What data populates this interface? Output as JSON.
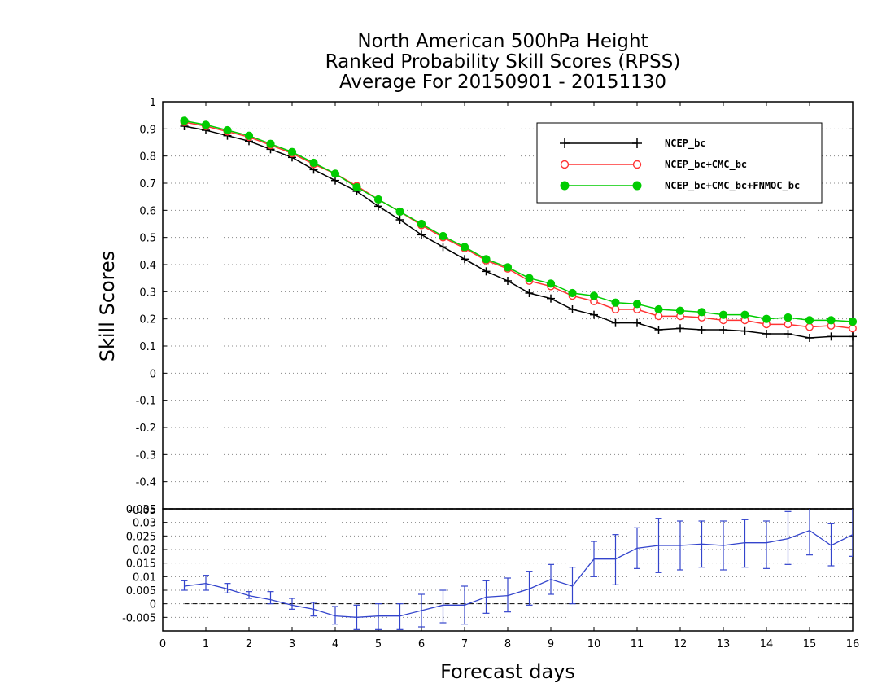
{
  "chart_data": [
    {
      "type": "line",
      "title_lines": [
        "North American 500hPa Height",
        "Ranked Probability Skill Scores (RPSS)",
        " Average For 20150901 - 20151130"
      ],
      "ylabel": "Skill Scores",
      "ylim": [
        -0.5,
        1.0
      ],
      "xlim": [
        0,
        16
      ],
      "yticks": [
        "1",
        "0.9",
        "0.8",
        "0.7",
        "0.6",
        "0.5",
        "0.4",
        "0.3",
        "0.2",
        "0.1",
        "0",
        "-0.1",
        "-0.2",
        "-0.3",
        "-0.4"
      ],
      "ytick_values": [
        1,
        0.9,
        0.8,
        0.7,
        0.6,
        0.5,
        0.4,
        0.3,
        0.2,
        0.1,
        0,
        -0.1,
        -0.2,
        -0.3,
        -0.4
      ],
      "grid": "horizontal dotted",
      "legend_position": "top-right",
      "x": [
        0.5,
        1,
        1.5,
        2,
        2.5,
        3,
        3.5,
        4,
        4.5,
        5,
        5.5,
        6,
        6.5,
        7,
        7.5,
        8,
        8.5,
        9,
        9.5,
        10,
        10.5,
        11,
        11.5,
        12,
        12.5,
        13,
        13.5,
        14,
        14.5,
        15,
        15.5,
        16
      ],
      "series": [
        {
          "name": "NCEP_bc",
          "color": "#000000",
          "marker": "plus",
          "values": [
            0.91,
            0.895,
            0.875,
            0.855,
            0.825,
            0.795,
            0.75,
            0.71,
            0.67,
            0.615,
            0.565,
            0.51,
            0.465,
            0.42,
            0.375,
            0.34,
            0.295,
            0.275,
            0.235,
            0.215,
            0.185,
            0.185,
            0.16,
            0.165,
            0.16,
            0.16,
            0.155,
            0.145,
            0.145,
            0.13,
            0.135,
            0.135
          ]
        },
        {
          "name": "NCEP_bc+CMC_bc",
          "color": "#ff3333",
          "marker": "open-circle",
          "values": [
            0.925,
            0.91,
            0.89,
            0.87,
            0.84,
            0.81,
            0.77,
            0.735,
            0.69,
            0.64,
            0.595,
            0.545,
            0.5,
            0.46,
            0.415,
            0.385,
            0.34,
            0.32,
            0.285,
            0.265,
            0.235,
            0.235,
            0.21,
            0.21,
            0.205,
            0.195,
            0.195,
            0.18,
            0.18,
            0.17,
            0.175,
            0.165
          ]
        },
        {
          "name": "NCEP_bc+CMC_bc+FNMOC_bc",
          "color": "#00cc00",
          "marker": "filled-circle",
          "values": [
            0.93,
            0.915,
            0.895,
            0.875,
            0.845,
            0.815,
            0.775,
            0.735,
            0.685,
            0.64,
            0.595,
            0.55,
            0.505,
            0.465,
            0.42,
            0.39,
            0.35,
            0.33,
            0.295,
            0.285,
            0.26,
            0.255,
            0.235,
            0.23,
            0.225,
            0.215,
            0.215,
            0.2,
            0.205,
            0.195,
            0.195,
            0.19
          ]
        }
      ]
    },
    {
      "type": "line",
      "xlabel": "Forecast days",
      "xticks": [
        "0",
        "1",
        "2",
        "3",
        "4",
        "5",
        "6",
        "7",
        "8",
        "9",
        "10",
        "11",
        "12",
        "13",
        "14",
        "15",
        "16"
      ],
      "ylim": [
        -0.01,
        0.035
      ],
      "yticks": [
        "0.035",
        "0.03",
        "0.025",
        "0.02",
        "0.015",
        "0.01",
        "0.005",
        "0",
        "-0.005"
      ],
      "ytick_values": [
        0.035,
        0.03,
        0.025,
        0.02,
        0.015,
        0.01,
        0.005,
        0,
        -0.005
      ],
      "top_tick_overlap": "-0.05",
      "grid": "horizontal dotted",
      "zero_line": "dashed",
      "color": "#3344cc",
      "x": [
        0.5,
        1,
        1.5,
        2,
        2.5,
        3,
        3.5,
        4,
        4.5,
        5,
        5.5,
        6,
        6.5,
        7,
        7.5,
        8,
        8.5,
        9,
        9.5,
        10,
        10.5,
        11,
        11.5,
        12,
        12.5,
        13,
        13.5,
        14,
        14.5,
        15,
        15.5,
        16
      ],
      "values": [
        0.0065,
        0.0075,
        0.0055,
        0.003,
        0.0015,
        -0.0005,
        -0.002,
        -0.0045,
        -0.005,
        -0.0045,
        -0.0045,
        -0.0025,
        -0.0005,
        -0.0005,
        0.0025,
        0.003,
        0.0055,
        0.009,
        0.0065,
        0.0165,
        0.0165,
        0.0205,
        0.0215,
        0.0215,
        0.022,
        0.0215,
        0.0225,
        0.0225,
        0.024,
        0.027,
        0.0215,
        0.0255
      ],
      "error_low": [
        0.005,
        0.005,
        0.004,
        0.002,
        0.0,
        -0.002,
        -0.0045,
        -0.0075,
        -0.0095,
        -0.0095,
        -0.0095,
        -0.0085,
        -0.007,
        -0.0075,
        -0.0035,
        -0.003,
        -0.0005,
        0.0035,
        0.0,
        0.01,
        0.007,
        0.013,
        0.0115,
        0.0125,
        0.0135,
        0.0125,
        0.0135,
        0.013,
        0.0145,
        0.018,
        0.014,
        0.0175
      ],
      "error_high": [
        0.0085,
        0.0105,
        0.0075,
        0.0045,
        0.0045,
        0.002,
        0.0005,
        -0.001,
        -0.0005,
        0.0,
        0.0,
        0.0035,
        0.005,
        0.0065,
        0.0085,
        0.0095,
        0.012,
        0.0145,
        0.0135,
        0.023,
        0.0255,
        0.028,
        0.0315,
        0.0305,
        0.0305,
        0.0305,
        0.031,
        0.0305,
        0.034,
        0.0355,
        0.0295,
        0.0355
      ]
    }
  ]
}
